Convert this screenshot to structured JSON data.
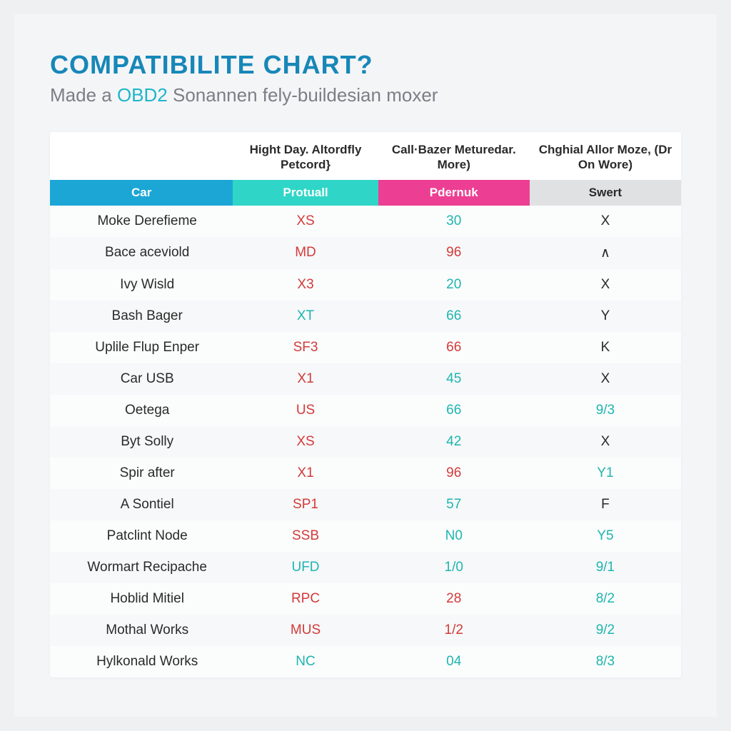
{
  "header": {
    "title": "COMPATIBILITE CHART?",
    "subtitle_pre": "Made a ",
    "subtitle_accent": "OBD2",
    "subtitle_post": " Sonannen fely-buildesian moxer"
  },
  "table": {
    "type": "table",
    "background_color": "#f4f5f7",
    "row_alt_colors": [
      "#fbfcfc",
      "#f6f8f9"
    ],
    "text_colors": {
      "red": "#d43a3a",
      "teal": "#1fb5b0",
      "dark": "#2a2a2a"
    },
    "header_colors": {
      "car": "#1ba6d6",
      "protuall": "#2fd6c7",
      "pdernuk": "#ec3f93",
      "swert": "#dfe1e2"
    },
    "top_headers": [
      "",
      "Hight Day. Altordfly Petcord}",
      "Call·Bazer Meturedar. More)",
      "Chghial Allor Moze, (Dr On Wore)"
    ],
    "sub_headers": [
      "Car",
      "Protuall",
      "Pdernuk",
      "Swert"
    ],
    "rows": [
      {
        "car": "Moke Derefieme",
        "c2": {
          "v": "XS",
          "color": "red"
        },
        "c3": {
          "v": "30",
          "color": "teal"
        },
        "c4": {
          "v": "X",
          "color": "dark"
        }
      },
      {
        "car": "Bace aceviold",
        "c2": {
          "v": "MD",
          "color": "red"
        },
        "c3": {
          "v": "96",
          "color": "red"
        },
        "c4": {
          "v": "∧",
          "color": "dark"
        }
      },
      {
        "car": "Ivy Wisld",
        "c2": {
          "v": "X3",
          "color": "red"
        },
        "c3": {
          "v": "20",
          "color": "teal"
        },
        "c4": {
          "v": "X",
          "color": "dark"
        }
      },
      {
        "car": "Bash Bager",
        "c2": {
          "v": "XT",
          "color": "teal"
        },
        "c3": {
          "v": "66",
          "color": "teal"
        },
        "c4": {
          "v": "Y",
          "color": "dark"
        }
      },
      {
        "car": "Uplile Flup Enper",
        "c2": {
          "v": "SF3",
          "color": "red"
        },
        "c3": {
          "v": "66",
          "color": "red"
        },
        "c4": {
          "v": "K",
          "color": "dark"
        }
      },
      {
        "car": "Car USB",
        "c2": {
          "v": "X1",
          "color": "red"
        },
        "c3": {
          "v": "45",
          "color": "teal"
        },
        "c4": {
          "v": "X",
          "color": "dark"
        }
      },
      {
        "car": "Oetega",
        "c2": {
          "v": "US",
          "color": "red"
        },
        "c3": {
          "v": "66",
          "color": "teal"
        },
        "c4": {
          "v": "9/3",
          "color": "teal"
        }
      },
      {
        "car": "Byt Solly",
        "c2": {
          "v": "XS",
          "color": "red"
        },
        "c3": {
          "v": "42",
          "color": "teal"
        },
        "c4": {
          "v": "X",
          "color": "dark"
        }
      },
      {
        "car": "Spir after",
        "c2": {
          "v": "X1",
          "color": "red"
        },
        "c3": {
          "v": "96",
          "color": "red"
        },
        "c4": {
          "v": "Y1",
          "color": "teal"
        }
      },
      {
        "car": "A Sontiel",
        "c2": {
          "v": "SP1",
          "color": "red"
        },
        "c3": {
          "v": "57",
          "color": "teal"
        },
        "c4": {
          "v": "F",
          "color": "dark"
        }
      },
      {
        "car": "Patclint Node",
        "c2": {
          "v": "SSB",
          "color": "red"
        },
        "c3": {
          "v": "N0",
          "color": "teal"
        },
        "c4": {
          "v": "Y5",
          "color": "teal"
        }
      },
      {
        "car": "Wormart Recipache",
        "c2": {
          "v": "UFD",
          "color": "teal"
        },
        "c3": {
          "v": "1/0",
          "color": "teal"
        },
        "c4": {
          "v": "9/1",
          "color": "teal"
        }
      },
      {
        "car": "Hoblid Mitiel",
        "c2": {
          "v": "RPC",
          "color": "red"
        },
        "c3": {
          "v": "28",
          "color": "red"
        },
        "c4": {
          "v": "8/2",
          "color": "teal"
        }
      },
      {
        "car": "Mothal Works",
        "c2": {
          "v": "MUS",
          "color": "red"
        },
        "c3": {
          "v": "1/2",
          "color": "red"
        },
        "c4": {
          "v": "9/2",
          "color": "teal"
        }
      },
      {
        "car": "Hylkonald Works",
        "c2": {
          "v": "NC",
          "color": "teal"
        },
        "c3": {
          "v": "04",
          "color": "teal"
        },
        "c4": {
          "v": "8/3",
          "color": "teal"
        }
      }
    ]
  }
}
